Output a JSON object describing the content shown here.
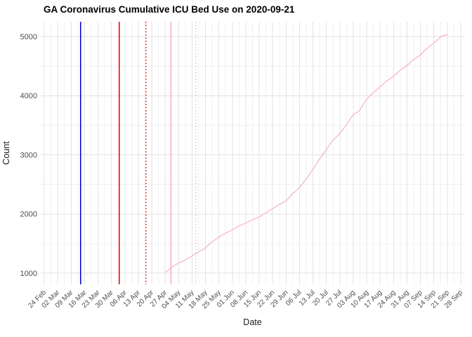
{
  "chart_data": {
    "type": "line",
    "title": "GA Coronavirus Cumulative ICU Bed Use on 2020-09-21",
    "xlabel": "Date",
    "ylabel": "Count",
    "legend": "none",
    "grid": "major+minor",
    "background": "#ffffff",
    "grid_major_color": "#e3e3e3",
    "grid_minor_color": "#f0f0f0",
    "axis_text_color": "#4d4d4d",
    "x_axis_start": "2020-02-24",
    "x_axis_end": "2020-09-28",
    "x_tick_labels": [
      "24 Feb",
      "02 Mar",
      "09 Mar",
      "16 Mar",
      "23 Mar",
      "30 Mar",
      "06 Apr",
      "13 Apr",
      "20 Apr",
      "27 Apr",
      "04 May",
      "11 May",
      "18 May",
      "25 May",
      "01 Jun",
      "08 Jun",
      "15 Jun",
      "22 Jun",
      "29 Jun",
      "06 Jul",
      "13 Jul",
      "20 Jul",
      "27 Jul",
      "03 Aug",
      "10 Aug",
      "17 Aug",
      "24 Aug",
      "31 Aug",
      "07 Sep",
      "14 Sep",
      "21 Sep",
      "28 Sep"
    ],
    "y_ticks": [
      1000,
      2000,
      3000,
      4000,
      5000
    ],
    "y_minor_ticks": [
      1500,
      2500,
      3500,
      4500
    ],
    "ylim": [
      810,
      5250
    ],
    "vlines": [
      {
        "date": "2020-03-14",
        "color": "#0000cd",
        "linetype": "solid"
      },
      {
        "date": "2020-04-03",
        "color": "#e60000",
        "linetype": "solid"
      },
      {
        "date": "2020-04-17",
        "color": "#e60000",
        "linetype": "dotted"
      },
      {
        "date": "2020-04-30",
        "color": "#ffb3c6",
        "linetype": "solid"
      },
      {
        "date": "2020-05-13",
        "color": "#ffb3c6",
        "linetype": "dotted"
      }
    ],
    "series": [
      {
        "name": "cumulative-icu-beds",
        "color": "#f8b1c3",
        "points": [
          [
            "2020-04-27",
            1010
          ],
          [
            "2020-04-30",
            1090
          ],
          [
            "2020-05-04",
            1170
          ],
          [
            "2020-05-07",
            1215
          ],
          [
            "2020-05-11",
            1290
          ],
          [
            "2020-05-14",
            1350
          ],
          [
            "2020-05-18",
            1425
          ],
          [
            "2020-05-21",
            1520
          ],
          [
            "2020-05-25",
            1610
          ],
          [
            "2020-05-28",
            1670
          ],
          [
            "2020-06-01",
            1730
          ],
          [
            "2020-06-04",
            1790
          ],
          [
            "2020-06-08",
            1845
          ],
          [
            "2020-06-11",
            1895
          ],
          [
            "2020-06-15",
            1950
          ],
          [
            "2020-06-18",
            2010
          ],
          [
            "2020-06-22",
            2090
          ],
          [
            "2020-06-25",
            2150
          ],
          [
            "2020-06-29",
            2220
          ],
          [
            "2020-07-02",
            2330
          ],
          [
            "2020-07-06",
            2450
          ],
          [
            "2020-07-09",
            2570
          ],
          [
            "2020-07-13",
            2750
          ],
          [
            "2020-07-16",
            2910
          ],
          [
            "2020-07-20",
            3090
          ],
          [
            "2020-07-23",
            3230
          ],
          [
            "2020-07-27",
            3360
          ],
          [
            "2020-07-30",
            3490
          ],
          [
            "2020-08-03",
            3680
          ],
          [
            "2020-08-06",
            3740
          ],
          [
            "2020-08-10",
            3940
          ],
          [
            "2020-08-13",
            4040
          ],
          [
            "2020-08-17",
            4150
          ],
          [
            "2020-08-20",
            4240
          ],
          [
            "2020-08-24",
            4330
          ],
          [
            "2020-08-27",
            4420
          ],
          [
            "2020-08-31",
            4510
          ],
          [
            "2020-09-03",
            4600
          ],
          [
            "2020-09-07",
            4690
          ],
          [
            "2020-09-10",
            4790
          ],
          [
            "2020-09-14",
            4890
          ],
          [
            "2020-09-17",
            4980
          ],
          [
            "2020-09-19",
            5020
          ],
          [
            "2020-09-21",
            5030
          ]
        ]
      }
    ]
  }
}
